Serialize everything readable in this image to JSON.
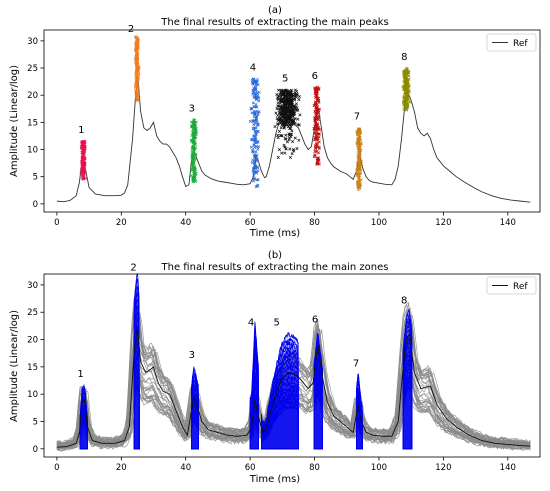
{
  "chart_data": [
    {
      "type": "line",
      "panel_label": "(a)",
      "title": "The final results of extracting the main peaks",
      "xlabel": "Time (ms)",
      "ylabel": "Amplitude (Linear/log)",
      "xlim": [
        -4,
        150
      ],
      "ylim": [
        -1.5,
        32
      ],
      "xticks": [
        0,
        20,
        40,
        60,
        80,
        100,
        120,
        140
      ],
      "yticks": [
        0,
        5,
        10,
        15,
        20,
        25,
        30
      ],
      "grid": false,
      "legend": {
        "position": "top-right",
        "entries": [
          "Ref"
        ]
      },
      "series": [
        {
          "name": "Ref",
          "color": "#333333",
          "points": [
            [
              0,
              0.5
            ],
            [
              2,
              0.4
            ],
            [
              4,
              0.6
            ],
            [
              6,
              1.5
            ],
            [
              7,
              4
            ],
            [
              7.6,
              7
            ],
            [
              8.3,
              8
            ],
            [
              9,
              6
            ],
            [
              10,
              3
            ],
            [
              12,
              1.8
            ],
            [
              15,
              1.5
            ],
            [
              18,
              1.5
            ],
            [
              20,
              1.6
            ],
            [
              21,
              2
            ],
            [
              22,
              3.5
            ],
            [
              23.5,
              12
            ],
            [
              24.5,
              20.5
            ],
            [
              25.2,
              23
            ],
            [
              26,
              17
            ],
            [
              27,
              14
            ],
            [
              28,
              13.5
            ],
            [
              29,
              14
            ],
            [
              30,
              15
            ],
            [
              31,
              12.5
            ],
            [
              32,
              11.5
            ],
            [
              33,
              11
            ],
            [
              34,
              11
            ],
            [
              35,
              10.5
            ],
            [
              36,
              9.5
            ],
            [
              37,
              8.5
            ],
            [
              38,
              7
            ],
            [
              39,
              5
            ],
            [
              40,
              3.2
            ],
            [
              41,
              3.5
            ],
            [
              41.7,
              7.5
            ],
            [
              42.3,
              9.5
            ],
            [
              43,
              9
            ],
            [
              44,
              7.5
            ],
            [
              45,
              6
            ],
            [
              46,
              5.3
            ],
            [
              48,
              4.6
            ],
            [
              50,
              4.2
            ],
            [
              52,
              4
            ],
            [
              54,
              3.8
            ],
            [
              56,
              3.6
            ],
            [
              58,
              3.5
            ],
            [
              60,
              3.7
            ],
            [
              61,
              5
            ],
            [
              61.8,
              9
            ],
            [
              62.5,
              8
            ],
            [
              63.5,
              6
            ],
            [
              64.5,
              4.8
            ],
            [
              65,
              5
            ],
            [
              66,
              7
            ],
            [
              67,
              10
            ],
            [
              68,
              13
            ],
            [
              69,
              15
            ],
            [
              70,
              16
            ],
            [
              71,
              16.5
            ],
            [
              72,
              16
            ],
            [
              73,
              15.5
            ],
            [
              74,
              14.5
            ],
            [
              75,
              14
            ],
            [
              76,
              12.5
            ],
            [
              77,
              11
            ],
            [
              78,
              10
            ],
            [
              79,
              10.5
            ],
            [
              80,
              14
            ],
            [
              81,
              18
            ],
            [
              82,
              14.5
            ],
            [
              83,
              10.5
            ],
            [
              84,
              8.5
            ],
            [
              85,
              7.5
            ],
            [
              86,
              6.8
            ],
            [
              88,
              6
            ],
            [
              90,
              5.5
            ],
            [
              91,
              5
            ],
            [
              92,
              4.5
            ],
            [
              93,
              6
            ],
            [
              94,
              9.3
            ],
            [
              95,
              6.5
            ],
            [
              96,
              5
            ],
            [
              97,
              4.3
            ],
            [
              98,
              4
            ],
            [
              100,
              3.8
            ],
            [
              102,
              3.6
            ],
            [
              104,
              3.5
            ],
            [
              105,
              4.5
            ],
            [
              106,
              7
            ],
            [
              107,
              12
            ],
            [
              108,
              18
            ],
            [
              109,
              20.5
            ],
            [
              110,
              19
            ],
            [
              111,
              17
            ],
            [
              112,
              14
            ],
            [
              113,
              13
            ],
            [
              114,
              12.5
            ],
            [
              115,
              13
            ],
            [
              116,
              12
            ],
            [
              117,
              10
            ],
            [
              118,
              8.5
            ],
            [
              120,
              7
            ],
            [
              122,
              6
            ],
            [
              124,
              5
            ],
            [
              126,
              4.2
            ],
            [
              128,
              3.5
            ],
            [
              130,
              2.8
            ],
            [
              132,
              2.2
            ],
            [
              135,
              1.5
            ],
            [
              138,
              1
            ],
            [
              141,
              0.7
            ],
            [
              144,
              0.5
            ],
            [
              147,
              0.3
            ]
          ]
        }
      ],
      "peaks": [
        {
          "label": "1",
          "color": "#e8134a",
          "x_center": 8.2,
          "x_spread": 0.9,
          "y_min": 4.5,
          "y_max": 11.5
        },
        {
          "label": "2",
          "color": "#f07c1e",
          "x_center": 24.9,
          "x_spread": 0.7,
          "y_min": 19,
          "y_max": 31
        },
        {
          "label": "3",
          "color": "#1ea83a",
          "x_center": 42.5,
          "x_spread": 1.1,
          "y_min": 4,
          "y_max": 15.5
        },
        {
          "label": "4",
          "color": "#2a66d8",
          "x_center": 61.5,
          "x_spread": 1.8,
          "y_min": 3,
          "y_max": 23
        },
        {
          "label": "5",
          "color": "#111111",
          "x_center": 71.5,
          "x_spread": 4.5,
          "y_min": 8.5,
          "y_max": 21
        },
        {
          "label": "6",
          "color": "#c01010",
          "x_center": 80.7,
          "x_spread": 1.2,
          "y_min": 7,
          "y_max": 21.5
        },
        {
          "label": "7",
          "color": "#c8801a",
          "x_center": 93.8,
          "x_spread": 0.9,
          "y_min": 2.5,
          "y_max": 14
        },
        {
          "label": "8",
          "color": "#8a8a00",
          "x_center": 108.5,
          "x_spread": 1.3,
          "y_min": 17,
          "y_max": 25
        }
      ]
    },
    {
      "type": "area",
      "panel_label": "(b)",
      "title": "The final results of extracting the main zones",
      "xlabel": "Time (ms)",
      "ylabel": "Amplitude (Linear/log)",
      "xlim": [
        -4,
        150
      ],
      "ylim": [
        -1.5,
        32
      ],
      "xticks": [
        0,
        20,
        40,
        60,
        80,
        100,
        120,
        140
      ],
      "yticks": [
        0,
        5,
        10,
        15,
        20,
        25,
        30
      ],
      "grid": false,
      "legend": {
        "position": "top-right",
        "entries": [
          "Ref"
        ]
      },
      "series": [
        {
          "name": "Ref",
          "color": "#111111",
          "points": [
            [
              0,
              0.3
            ],
            [
              3,
              0.4
            ],
            [
              6,
              1
            ],
            [
              7,
              3
            ],
            [
              7.8,
              8.5
            ],
            [
              8.6,
              9
            ],
            [
              9.5,
              4
            ],
            [
              11,
              1.5
            ],
            [
              14,
              1
            ],
            [
              18,
              1
            ],
            [
              21,
              1.5
            ],
            [
              22.5,
              4
            ],
            [
              24,
              18
            ],
            [
              25,
              22
            ],
            [
              26,
              16
            ],
            [
              27.5,
              14
            ],
            [
              29,
              14.5
            ],
            [
              30,
              15
            ],
            [
              31.5,
              12
            ],
            [
              33,
              10.5
            ],
            [
              35,
              10
            ],
            [
              37,
              7
            ],
            [
              39,
              4
            ],
            [
              40.5,
              2.5
            ],
            [
              41.5,
              6
            ],
            [
              42.5,
              9.5
            ],
            [
              43.5,
              8
            ],
            [
              45,
              5
            ],
            [
              47,
              3.5
            ],
            [
              50,
              3
            ],
            [
              53,
              2.5
            ],
            [
              56,
              2.3
            ],
            [
              59,
              2.5
            ],
            [
              60.5,
              4
            ],
            [
              61.5,
              9
            ],
            [
              62.5,
              6
            ],
            [
              64,
              3
            ],
            [
              65,
              3.5
            ],
            [
              66,
              6
            ],
            [
              68,
              10
            ],
            [
              70,
              13
            ],
            [
              72,
              14
            ],
            [
              74,
              13.5
            ],
            [
              76,
              12.5
            ],
            [
              78,
              11
            ],
            [
              79.5,
              12
            ],
            [
              81,
              19
            ],
            [
              82.5,
              13
            ],
            [
              84,
              8.5
            ],
            [
              86,
              6
            ],
            [
              88,
              5
            ],
            [
              90,
              4
            ],
            [
              92,
              3
            ],
            [
              93.5,
              8
            ],
            [
              94.5,
              5
            ],
            [
              96,
              3
            ],
            [
              98,
              2.5
            ],
            [
              101,
              2.3
            ],
            [
              104,
              2.3
            ],
            [
              106,
              5
            ],
            [
              107.5,
              15
            ],
            [
              108.5,
              20
            ],
            [
              109.5,
              21
            ],
            [
              111,
              14
            ],
            [
              113,
              11
            ],
            [
              116,
              11.5
            ],
            [
              118,
              8
            ],
            [
              121,
              5.5
            ],
            [
              124,
              4
            ],
            [
              128,
              2.5
            ],
            [
              132,
              1.5
            ],
            [
              136,
              1
            ],
            [
              140,
              0.8
            ],
            [
              144,
              0.6
            ],
            [
              147,
              0.5
            ]
          ]
        }
      ],
      "envelope_color": "#8a8a8a",
      "zone_color": "#0000ee",
      "zones": [
        {
          "label": "1",
          "x_start": 7.2,
          "x_end": 9.5,
          "y_peak": 11.5
        },
        {
          "label": "2",
          "x_start": 24.0,
          "x_end": 25.6,
          "y_peak": 31
        },
        {
          "label": "3",
          "x_start": 41.8,
          "x_end": 44.0,
          "y_peak": 15
        },
        {
          "label": "4",
          "x_start": 60.0,
          "x_end": 62.6,
          "y_peak": 21
        },
        {
          "label": "5",
          "x_start": 63.5,
          "x_end": 75.0,
          "y_peak": 21
        },
        {
          "label": "6",
          "x_start": 79.8,
          "x_end": 82.5,
          "y_peak": 21.5
        },
        {
          "label": "7",
          "x_start": 93.0,
          "x_end": 94.8,
          "y_peak": 13.5
        },
        {
          "label": "8",
          "x_start": 107.5,
          "x_end": 110.2,
          "y_peak": 25
        }
      ]
    }
  ]
}
